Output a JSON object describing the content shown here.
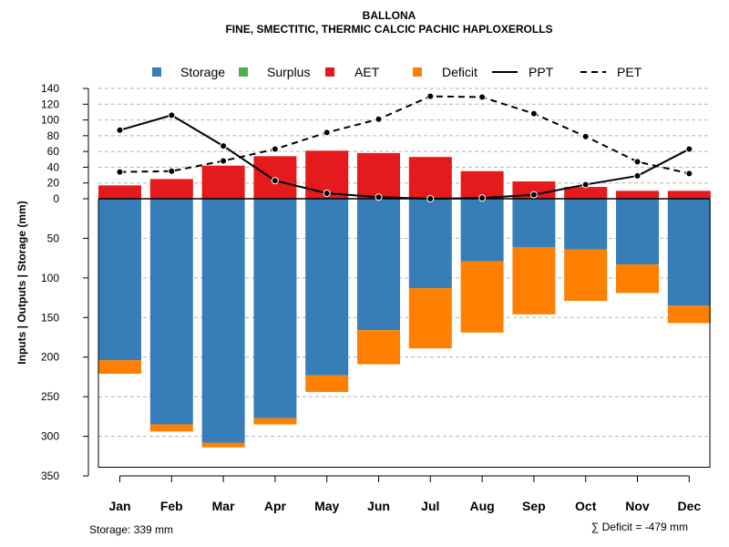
{
  "chart_data": {
    "type": "bar",
    "title": "BALLONA",
    "subtitle": "FINE, SMECTITIC, THERMIC CALCIC PACHIC HAPLOXEROLLS",
    "ylabel": "Inputs | Outputs | Storage    (mm)",
    "categories": [
      "Jan",
      "Feb",
      "Mar",
      "Apr",
      "May",
      "Jun",
      "Jul",
      "Aug",
      "Sep",
      "Oct",
      "Nov",
      "Dec"
    ],
    "upper_ylim": [
      0,
      140
    ],
    "upper_ticks": [
      "0",
      "20",
      "40",
      "60",
      "80",
      "100",
      "120",
      "140"
    ],
    "lower_ylim": [
      0,
      350
    ],
    "lower_ticks": [
      "0",
      "50",
      "100",
      "150",
      "200",
      "250",
      "300",
      "350"
    ],
    "legend": [
      "Storage",
      "Surplus",
      "AET",
      "Deficit",
      "PPT",
      "PET"
    ],
    "colors": {
      "storage": "#377EB8",
      "surplus": "#4DAF4A",
      "aet": "#E41A1C",
      "deficit": "#FF7F00",
      "line": "#000000",
      "grid": "#b3b3b3"
    },
    "series": [
      {
        "name": "AET",
        "values": [
          17,
          25,
          42,
          54,
          61,
          58,
          53,
          35,
          22,
          15,
          10,
          10
        ]
      },
      {
        "name": "Surplus",
        "values": [
          0,
          0,
          0,
          0,
          0,
          0,
          0,
          0,
          0,
          0,
          0,
          0
        ]
      },
      {
        "name": "Storage",
        "values": [
          204,
          285,
          308,
          277,
          223,
          166,
          113,
          79,
          61,
          64,
          83,
          135
        ]
      },
      {
        "name": "Deficit",
        "values": [
          17,
          9,
          6,
          8,
          21,
          43,
          76,
          90,
          85,
          65,
          36,
          22
        ]
      },
      {
        "name": "PPT",
        "values": [
          87,
          106,
          67,
          23,
          7,
          2,
          0,
          1,
          5,
          18,
          29,
          63
        ]
      },
      {
        "name": "PET",
        "values": [
          34,
          35,
          48,
          63,
          84,
          101,
          130,
          129,
          108,
          79,
          47,
          32
        ]
      }
    ],
    "annotations": {
      "storage_total": "Storage: 339 mm",
      "deficit_total": "∑ Deficit = -479 mm"
    }
  }
}
